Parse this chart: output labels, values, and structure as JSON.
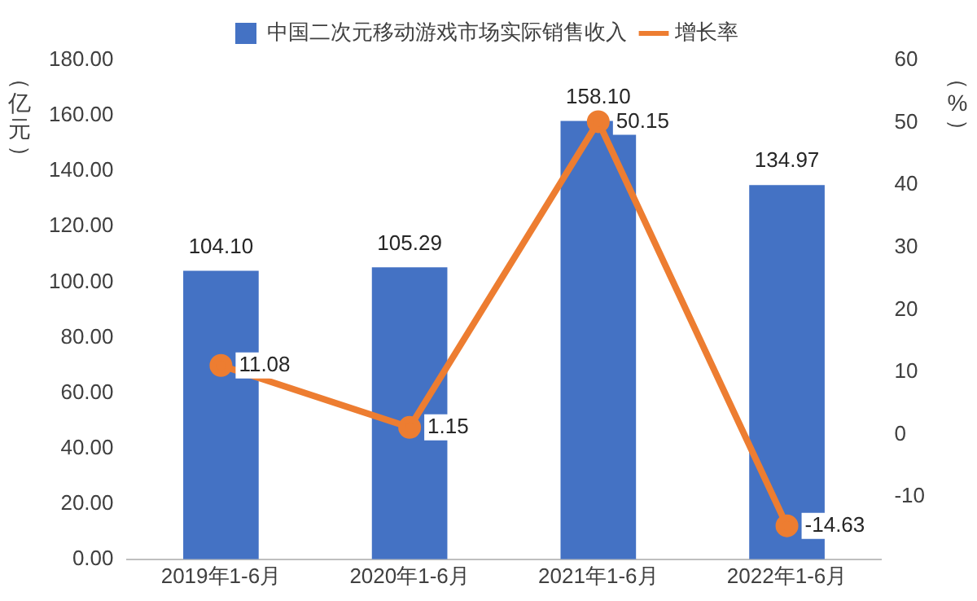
{
  "chart_data": {
    "type": "bar",
    "categories": [
      "2019年1-6月",
      "2020年1-6月",
      "2021年1-6月",
      "2022年1-6月"
    ],
    "series": [
      {
        "name": "中国二次元移动游戏市场实际销售收入",
        "color": "#4472c4",
        "values": [
          104.1,
          105.29,
          158.1,
          134.97
        ]
      },
      {
        "name": "增长率",
        "type": "line",
        "axis": "y2",
        "color": "#ed7d31",
        "values": [
          11.08,
          1.15,
          50.15,
          -14.63
        ]
      }
    ],
    "ylabel": "（亿元）",
    "y2label": "（%）",
    "ylim": [
      0,
      180
    ],
    "yticks": [
      {
        "value": 0,
        "label": "0.00"
      },
      {
        "value": 20,
        "label": "20.00"
      },
      {
        "value": 40,
        "label": "40.00"
      },
      {
        "value": 60,
        "label": "60.00"
      },
      {
        "value": 80,
        "label": "80.00"
      },
      {
        "value": 100,
        "label": "100.00"
      },
      {
        "value": 120,
        "label": "120.00"
      },
      {
        "value": 140,
        "label": "140.00"
      },
      {
        "value": 160,
        "label": "160.00"
      },
      {
        "value": 180,
        "label": "180.00"
      }
    ],
    "y2lim": [
      -20,
      60
    ],
    "y2ticks": [
      -10,
      0,
      10,
      20,
      30,
      40,
      50,
      60
    ],
    "value_labels": [
      [
        "104.10",
        "105.29",
        "158.10",
        "134.97"
      ],
      [
        "11.08",
        "1.15",
        "50.15",
        "-14.63"
      ]
    ],
    "legend": "top",
    "grid": false,
    "marker": "circle"
  }
}
